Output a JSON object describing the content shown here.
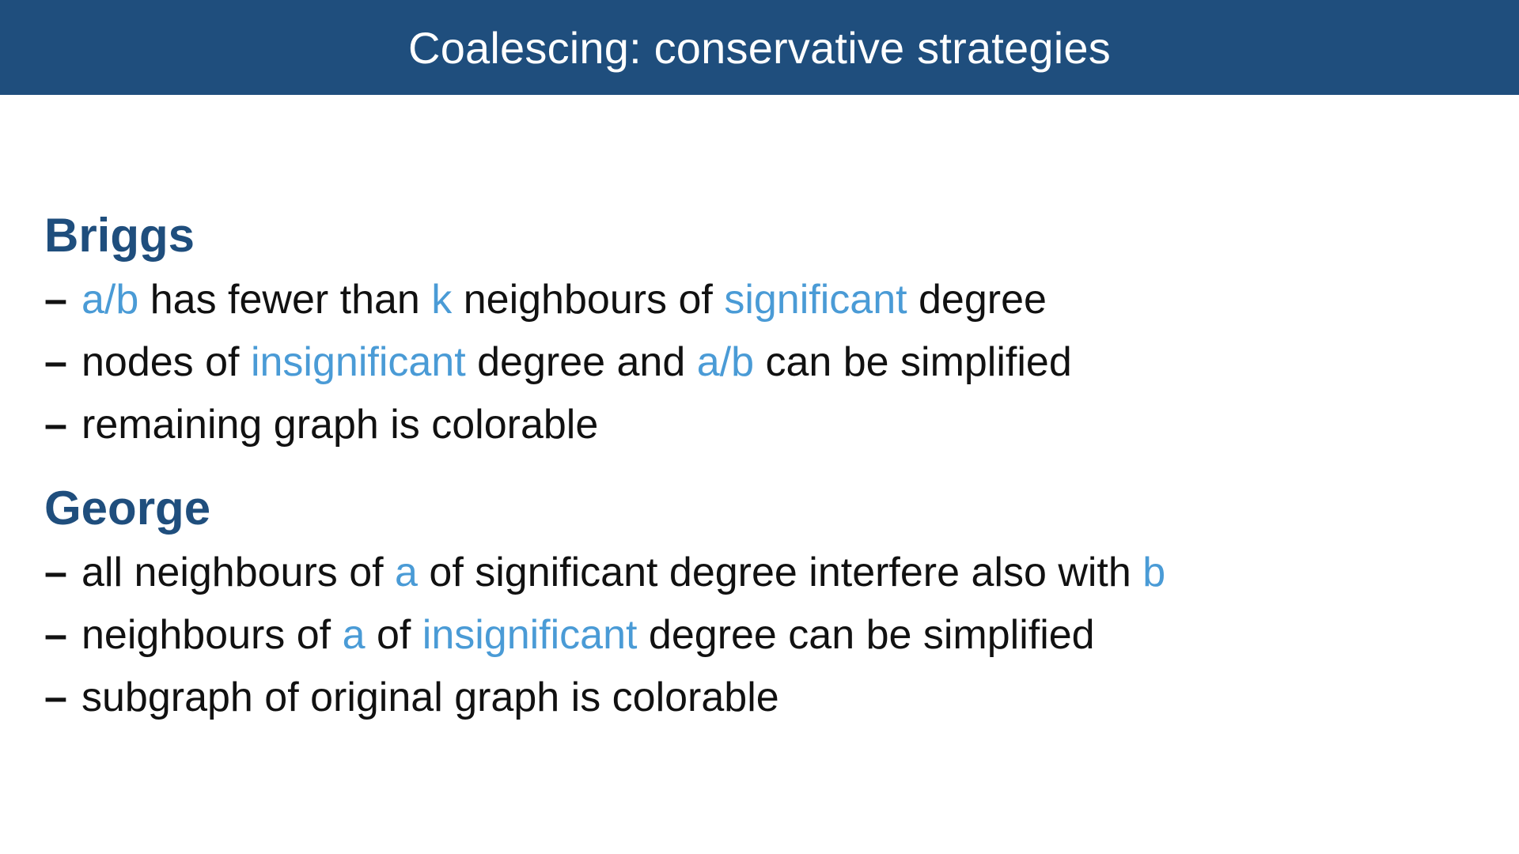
{
  "slide": {
    "title": "Coalescing: conservative strategies",
    "colors": {
      "header_bg": "#1f4e7d",
      "heading": "#1f4e7d",
      "highlight": "#4a9bd6",
      "text": "#111111"
    },
    "sections": [
      {
        "heading": "Briggs",
        "bullets": [
          {
            "marker": "–",
            "segments": [
              {
                "text": "a/b",
                "highlight": true
              },
              {
                "text": " has fewer than ",
                "highlight": false
              },
              {
                "text": "k",
                "highlight": true
              },
              {
                "text": " neighbours of ",
                "highlight": false
              },
              {
                "text": "significant",
                "highlight": true
              },
              {
                "text": " degree",
                "highlight": false
              }
            ]
          },
          {
            "marker": "–",
            "segments": [
              {
                "text": "nodes of ",
                "highlight": false
              },
              {
                "text": "insignificant",
                "highlight": true
              },
              {
                "text": " degree and ",
                "highlight": false
              },
              {
                "text": "a/b",
                "highlight": true
              },
              {
                "text": " can be simplified",
                "highlight": false
              }
            ]
          },
          {
            "marker": "–",
            "segments": [
              {
                "text": "remaining graph is colorable",
                "highlight": false
              }
            ]
          }
        ]
      },
      {
        "heading": "George",
        "bullets": [
          {
            "marker": "–",
            "segments": [
              {
                "text": "all neighbours of ",
                "highlight": false
              },
              {
                "text": "a",
                "highlight": true
              },
              {
                "text": " of significant degree interfere also with ",
                "highlight": false
              },
              {
                "text": "b",
                "highlight": true
              }
            ]
          },
          {
            "marker": "–",
            "segments": [
              {
                "text": "neighbours of ",
                "highlight": false
              },
              {
                "text": "a",
                "highlight": true
              },
              {
                "text": " of ",
                "highlight": false
              },
              {
                "text": "insignificant",
                "highlight": true
              },
              {
                "text": " degree can be simplified",
                "highlight": false
              }
            ]
          },
          {
            "marker": "–",
            "segments": [
              {
                "text": "subgraph of original graph is colorable",
                "highlight": false
              }
            ]
          }
        ]
      }
    ]
  }
}
